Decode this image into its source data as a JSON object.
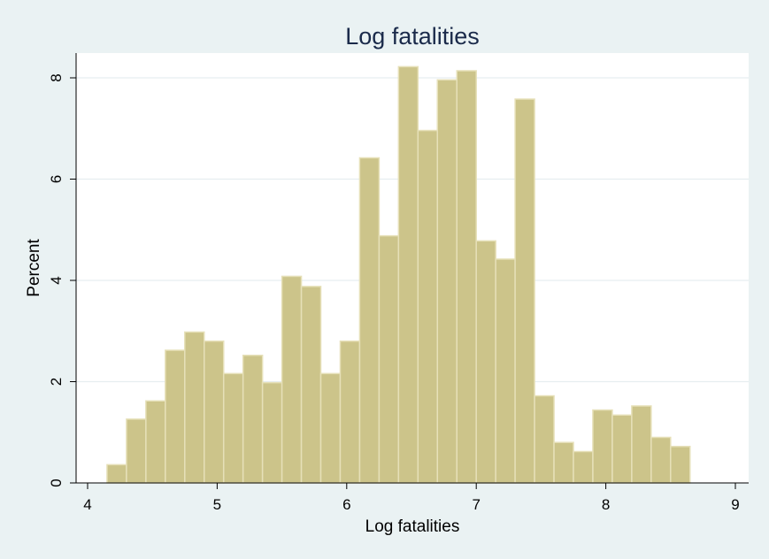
{
  "chart_data": {
    "type": "bar",
    "title": "Log fatalities",
    "xlabel": "Log fatalities",
    "ylabel": "Percent",
    "xlim": [
      4,
      9
    ],
    "ylim": [
      0,
      8.5
    ],
    "xticks": [
      "4",
      "5",
      "6",
      "7",
      "8",
      "9"
    ],
    "yticks": [
      "0",
      "2",
      "4",
      "6",
      "8"
    ],
    "grid": true,
    "bin_width": 0.15,
    "bin_start": 4.15,
    "values": [
      0.36,
      1.26,
      1.62,
      2.62,
      2.98,
      2.8,
      2.16,
      2.52,
      1.98,
      4.08,
      3.88,
      2.16,
      2.8,
      6.42,
      4.88,
      8.22,
      6.96,
      7.96,
      8.14,
      4.78,
      4.42,
      7.58,
      1.72,
      0.8,
      0.62,
      1.44,
      1.34,
      1.52,
      0.9,
      0.72
    ],
    "colors": {
      "bar_fill": "#ccc48a",
      "bar_stroke": "#e6e0b8",
      "plot_background": "#ffffff",
      "page_background": "#eaf2f3",
      "grid": "#e6eef0",
      "title": "#1a2a4a"
    }
  }
}
